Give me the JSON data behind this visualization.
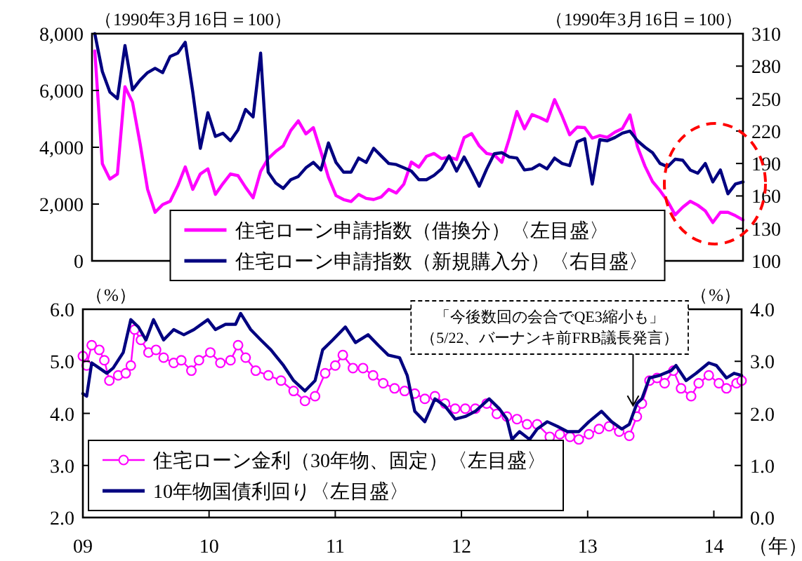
{
  "chart_data": [
    {
      "type": "line",
      "ylabel": "（1990年3月16日＝100）",
      "y2label": "（1990年3月16日＝100）",
      "categories": [
        null,
        null,
        null,
        null,
        null,
        null,
        null,
        null,
        null,
        null,
        null,
        null,
        null,
        null,
        null,
        null,
        null,
        null,
        null,
        null,
        null,
        null,
        null,
        null,
        null,
        null,
        null,
        null,
        null,
        null,
        null,
        null,
        null,
        null,
        null,
        null,
        null,
        null,
        null,
        null,
        null,
        null,
        null,
        null,
        null,
        null,
        null,
        null,
        null,
        null,
        null,
        null,
        null,
        null,
        null,
        null,
        null,
        null,
        null,
        null,
        null,
        null,
        null,
        null,
        null,
        null,
        null,
        null,
        null,
        null,
        null,
        null,
        null,
        null,
        null,
        null,
        null,
        null,
        null,
        null,
        null,
        null,
        null,
        null,
        null,
        null,
        null
      ],
      "ylim": [
        0,
        8000
      ],
      "yticks": [
        0,
        {
          "value": 2000,
          "label": "2,000"
        },
        {
          "value": 4000,
          "label": "4,000"
        },
        {
          "value": 6000,
          "label": "6,000"
        },
        {
          "value": 8000,
          "label": "8,000"
        }
      ],
      "y2lim": [
        100,
        310
      ],
      "y2ticks": [
        100,
        130,
        160,
        190,
        220,
        250,
        280,
        310
      ],
      "tick_labels": "y",
      "legend": "bottom",
      "grid": false,
      "series": [
        {
          "name": "住宅ローン申請指数（借換分）〈左目盛〉",
          "color": "#ff00ff",
          "values": [
            7390,
            3420,
            2880,
            3060,
            6130,
            5590,
            4140,
            2520,
            1710,
            1980,
            2100,
            2640,
            3310,
            2520,
            3060,
            3240,
            2340,
            2720,
            3060,
            3000,
            2590,
            2220,
            3150,
            3600,
            3850,
            4050,
            4590,
            4930,
            4470,
            4690,
            3840,
            2940,
            2300,
            2160,
            2090,
            2340,
            2200,
            2160,
            2250,
            2520,
            2390,
            2700,
            3480,
            3300,
            3680,
            3780,
            3600,
            3650,
            3570,
            4340,
            4480,
            4050,
            3780,
            3730,
            3470,
            4320,
            5260,
            4650,
            5150,
            5050,
            4920,
            5680,
            5100,
            4440,
            4710,
            4690,
            4320,
            4410,
            4350,
            4530,
            4660,
            5140,
            4020,
            3330,
            2790,
            2470,
            2100,
            1620,
            1890,
            2100,
            1960,
            1760,
            1350,
            1710,
            1710,
            1590,
            1440
          ]
        },
        {
          "name": "住宅ローン申請指数（新規購入分）〈右目盛〉",
          "color": "#000080",
          "axis": "y2",
          "values": [
            310,
            275,
            256,
            250,
            299,
            258,
            267,
            274,
            278,
            274,
            289,
            292,
            302,
            256,
            204,
            237,
            215,
            218,
            211,
            221,
            240,
            233,
            292,
            182,
            172,
            167,
            175,
            178,
            186,
            191,
            184,
            209,
            191,
            182,
            182,
            195,
            191,
            204,
            197,
            190,
            189,
            186,
            183,
            175,
            175,
            179,
            185,
            197,
            183,
            196,
            183,
            169,
            185,
            199,
            200,
            196,
            195,
            184,
            185,
            189,
            185,
            195,
            190,
            188,
            210,
            213,
            171,
            212,
            211,
            214,
            218,
            220,
            211,
            205,
            200,
            190,
            187,
            194,
            193,
            184,
            181,
            190,
            173,
            184,
            162,
            171,
            173
          ]
        }
      ]
    },
    {
      "type": "line",
      "ylabel": "（%）",
      "y2label": "（%）",
      "xlabel": "（年）",
      "xlim": [
        2009,
        2014.22
      ],
      "xticks": [
        {
          "value": 2009,
          "label": "09"
        },
        {
          "value": 2010,
          "label": "10"
        },
        {
          "value": 2011,
          "label": "11"
        },
        {
          "value": 2012,
          "label": "12"
        },
        {
          "value": 2013,
          "label": "13"
        },
        {
          "value": 2014,
          "label": "14"
        }
      ],
      "ylim": [
        2,
        6
      ],
      "yticks": [
        {
          "value": 2,
          "label": "2.0"
        },
        {
          "value": 3,
          "label": "3.0"
        },
        {
          "value": 4,
          "label": "4.0"
        },
        {
          "value": 5,
          "label": "5.0"
        },
        {
          "value": 6,
          "label": "6.0"
        }
      ],
      "y2lim": [
        0,
        4
      ],
      "y2ticks": [
        {
          "value": 0,
          "label": "0.0"
        },
        {
          "value": 1,
          "label": "1.0"
        },
        {
          "value": 2,
          "label": "2.0"
        },
        {
          "value": 3,
          "label": "3.0"
        },
        {
          "value": 4,
          "label": "4.0"
        }
      ],
      "legend": "bottom left",
      "grid": false,
      "annotations": [
        "「今後数回の会合でQE3縮小も」",
        {
          "text": "（5/22、バーナンキ前FRB議長発言）",
          "x": 2013.36,
          "y": 4.15
        }
      ],
      "series": [
        {
          "name": "住宅ローン金利（30年物、固定）〈左目盛〉",
          "color": "#ff00ff",
          "marker": "circle",
          "x": [
            2009.0,
            2009.03,
            2009.07,
            2009.13,
            2009.17,
            2009.21,
            2009.28,
            2009.34,
            2009.38,
            2009.41,
            2009.46,
            2009.52,
            2009.58,
            2009.64,
            2009.72,
            2009.78,
            2009.86,
            2009.92,
            2010.01,
            2010.09,
            2010.17,
            2010.23,
            2010.29,
            2010.37,
            2010.47,
            2010.57,
            2010.67,
            2010.76,
            2010.84,
            2010.92,
            2011.0,
            2011.06,
            2011.14,
            2011.22,
            2011.3,
            2011.38,
            2011.47,
            2011.55,
            2011.63,
            2011.71,
            2011.79,
            2011.87,
            2011.95,
            2012.03,
            2012.11,
            2012.2,
            2012.28,
            2012.36,
            2012.44,
            2012.52,
            2012.6,
            2012.7,
            2012.78,
            2012.86,
            2012.93,
            2013.01,
            2013.09,
            2013.17,
            2013.25,
            2013.33,
            2013.39,
            2013.43,
            2013.49,
            2013.55,
            2013.61,
            2013.68,
            2013.74,
            2013.82,
            2013.88,
            2013.96,
            2014.04,
            2014.1,
            2014.18,
            2014.22
          ],
          "values": [
            5.1,
            4.92,
            5.31,
            5.22,
            5.02,
            4.63,
            4.73,
            4.77,
            4.92,
            5.61,
            5.41,
            5.17,
            5.22,
            5.07,
            4.97,
            5.02,
            4.82,
            5.02,
            5.17,
            4.97,
            5.02,
            5.31,
            5.07,
            4.82,
            4.73,
            4.63,
            4.43,
            4.24,
            4.33,
            4.77,
            4.92,
            5.12,
            4.87,
            4.87,
            4.73,
            4.58,
            4.48,
            4.43,
            4.38,
            4.28,
            4.33,
            4.19,
            4.09,
            4.09,
            4.09,
            4.19,
            3.99,
            3.94,
            3.89,
            3.79,
            3.79,
            3.55,
            3.6,
            3.55,
            3.5,
            3.6,
            3.7,
            3.75,
            3.65,
            3.57,
            3.94,
            4.19,
            4.63,
            4.68,
            4.58,
            4.82,
            4.48,
            4.33,
            4.58,
            4.73,
            4.58,
            4.48,
            4.58,
            4.63
          ]
        },
        {
          "name": "10年物国債利回り〈左目盛〉",
          "color": "#000080",
          "axis": "y2",
          "x": [
            2009.0,
            2009.03,
            2009.07,
            2009.13,
            2009.19,
            2009.24,
            2009.32,
            2009.38,
            2009.44,
            2009.5,
            2009.56,
            2009.64,
            2009.72,
            2009.8,
            2009.88,
            2009.99,
            2010.05,
            2010.13,
            2010.21,
            2010.25,
            2010.33,
            2010.41,
            2010.49,
            2010.59,
            2010.67,
            2010.76,
            2010.84,
            2010.9,
            2010.98,
            2011.08,
            2011.16,
            2011.26,
            2011.34,
            2011.42,
            2011.51,
            2011.57,
            2011.63,
            2011.71,
            2011.79,
            2011.87,
            2011.95,
            2012.03,
            2012.11,
            2012.22,
            2012.3,
            2012.36,
            2012.4,
            2012.46,
            2012.54,
            2012.6,
            2012.68,
            2012.76,
            2012.84,
            2012.93,
            2013.01,
            2013.11,
            2013.19,
            2013.27,
            2013.33,
            2013.39,
            2013.43,
            2013.49,
            2013.57,
            2013.66,
            2013.7,
            2013.78,
            2013.86,
            2013.96,
            2014.02,
            2014.1,
            2014.16,
            2014.22
          ],
          "values": [
            2.38,
            2.33,
            2.97,
            2.87,
            2.77,
            2.87,
            3.17,
            3.8,
            3.66,
            3.41,
            3.8,
            3.41,
            3.61,
            3.51,
            3.61,
            3.8,
            3.61,
            3.71,
            3.71,
            3.92,
            3.61,
            3.41,
            3.22,
            2.92,
            2.63,
            2.43,
            2.63,
            3.22,
            3.41,
            3.66,
            3.36,
            3.51,
            3.31,
            3.12,
            3.07,
            2.73,
            2.04,
            1.84,
            2.28,
            2.14,
            1.89,
            1.94,
            2.04,
            2.28,
            2.09,
            1.89,
            1.5,
            1.65,
            1.5,
            1.7,
            1.84,
            1.75,
            1.65,
            1.65,
            1.84,
            2.04,
            1.84,
            1.7,
            1.79,
            2.19,
            2.28,
            2.68,
            2.73,
            2.82,
            2.92,
            2.63,
            2.77,
            2.97,
            2.92,
            2.68,
            2.77,
            2.73
          ]
        }
      ]
    }
  ]
}
